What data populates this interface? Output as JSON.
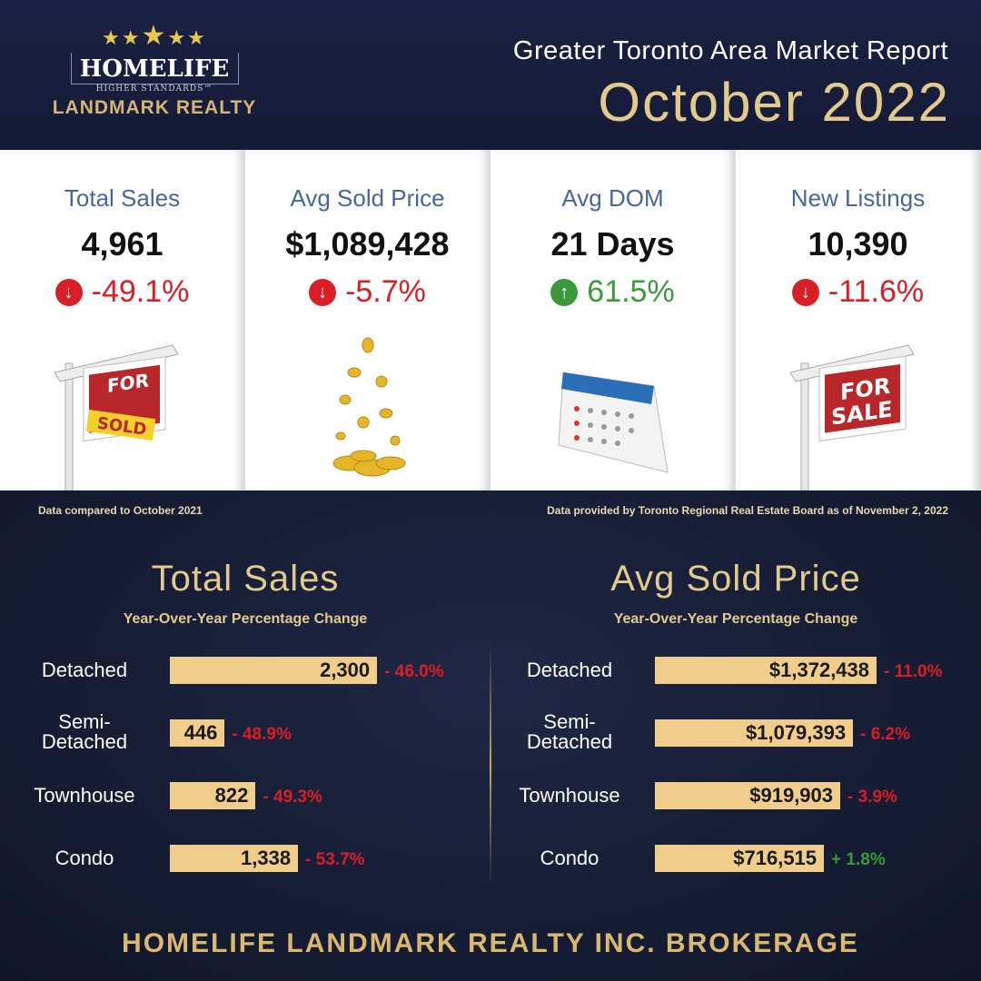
{
  "logo": {
    "stars": "★★★★★",
    "brand": "HOMELIFE",
    "tagline": "HIGHER STANDARDS™",
    "name": "LANDMARK REALTY"
  },
  "header": {
    "title": "Greater Toronto Area Market Report",
    "month": "October 2022"
  },
  "cards": [
    {
      "label": "Total Sales",
      "value": "4,961",
      "change": "-49.1%",
      "direction": "down",
      "icon": "sold-sign-icon"
    },
    {
      "label": "Avg Sold Price",
      "value": "$1,089,428",
      "change": "-5.7%",
      "direction": "down",
      "icon": "gold-coins-icon"
    },
    {
      "label": "Avg DOM",
      "value": "21 Days",
      "change": "61.5%",
      "direction": "up",
      "icon": "calendar-icon"
    },
    {
      "label": "New Listings",
      "value": "10,390",
      "change": "-11.6%",
      "direction": "down",
      "icon": "for-sale-sign-icon"
    }
  ],
  "notes": {
    "left": "Data compared to October 2021",
    "right": "Data provided by Toronto Regional Real Estate Board as of  November 2, 2022"
  },
  "colors": {
    "down": "#d81f26",
    "up": "#3a9a3a",
    "bar": "#f0cd8a",
    "gold": "#e2c98c"
  },
  "chart_data": [
    {
      "type": "bar",
      "orientation": "horizontal",
      "title": "Total Sales",
      "subtitle": "Year-Over-Year Percentage Change",
      "categories": [
        "Detached",
        "Semi-Detached",
        "Townhouse",
        "Condo"
      ],
      "values": [
        2300,
        446,
        822,
        1338
      ],
      "value_labels": [
        "2,300",
        "446",
        "822",
        "1,338"
      ],
      "change_labels": [
        "- 46.0%",
        "- 48.9%",
        "- 49.3%",
        "- 53.7%"
      ]
    },
    {
      "type": "bar",
      "orientation": "horizontal",
      "title": "Avg Sold Price",
      "subtitle": "Year-Over-Year Percentage Change",
      "categories": [
        "Detached",
        "Semi-Detached",
        "Townhouse",
        "Condo"
      ],
      "values": [
        1372438,
        1079393,
        919903,
        716515
      ],
      "value_labels": [
        "$1,372,438",
        "$1,079,393",
        "$919,903",
        "$716,515"
      ],
      "change_labels": [
        "- 11.0%",
        "- 6.2%",
        "- 3.9%",
        "+ 1.8%"
      ]
    }
  ],
  "footer": "HOMELIFE LANDMARK REALTY INC. BROKERAGE"
}
